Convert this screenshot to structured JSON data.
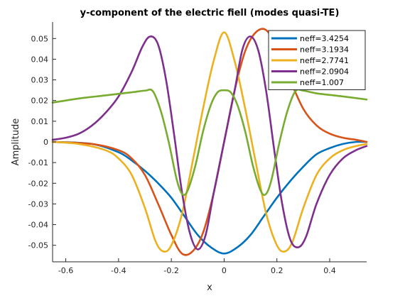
{
  "chart_data": {
    "type": "line",
    "title": "y-component of the electric fiell (modes quasi-TE)",
    "xlabel": "x",
    "ylabel": "Amplitude",
    "xlim": [
      -0.65,
      0.54
    ],
    "ylim": [
      -0.058,
      0.058
    ],
    "grid": false,
    "legend_position": "top-right",
    "xticks": [
      -0.6,
      -0.4,
      -0.2,
      0,
      0.2,
      0.4
    ],
    "xtick_labels": [
      "-0.6",
      "-0.4",
      "-0.2",
      "0",
      "0.2",
      "0.4"
    ],
    "yticks": [
      0.05,
      0.04,
      0.03,
      0.02,
      0.01,
      0,
      -0.01,
      -0.02,
      -0.03,
      -0.04,
      -0.05
    ],
    "ytick_labels": [
      "0.05",
      "0.04",
      "0.03",
      "0.02",
      "0.01",
      "0",
      "-0.01",
      "-0.02",
      "-0.03",
      "-0.04",
      "-0.05"
    ],
    "series": [
      {
        "name": "neff=3.4254",
        "color": "#0072BD",
        "points": [
          [
            -0.65,
            0
          ],
          [
            -0.5,
            -0.001
          ],
          [
            -0.4,
            -0.005
          ],
          [
            -0.35,
            -0.009
          ],
          [
            -0.3,
            -0.014
          ],
          [
            -0.25,
            -0.02
          ],
          [
            -0.2,
            -0.027
          ],
          [
            -0.15,
            -0.036
          ],
          [
            -0.1,
            -0.045
          ],
          [
            -0.05,
            -0.051
          ],
          [
            0,
            -0.054
          ],
          [
            0.05,
            -0.051
          ],
          [
            0.1,
            -0.045
          ],
          [
            0.15,
            -0.036
          ],
          [
            0.2,
            -0.027
          ],
          [
            0.25,
            -0.019
          ],
          [
            0.3,
            -0.012
          ],
          [
            0.35,
            -0.006
          ],
          [
            0.4,
            -0.003
          ],
          [
            0.45,
            -0.001
          ],
          [
            0.5,
            0
          ],
          [
            0.54,
            0
          ]
        ]
      },
      {
        "name": "neff=3.1934",
        "color": "#D95319",
        "points": [
          [
            -0.65,
            0
          ],
          [
            -0.5,
            -0.001
          ],
          [
            -0.4,
            -0.004
          ],
          [
            -0.35,
            -0.008
          ],
          [
            -0.3,
            -0.016
          ],
          [
            -0.25,
            -0.03
          ],
          [
            -0.2,
            -0.045
          ],
          [
            -0.16,
            -0.054
          ],
          [
            -0.12,
            -0.053
          ],
          [
            -0.08,
            -0.044
          ],
          [
            -0.04,
            -0.025
          ],
          [
            0,
            0
          ],
          [
            0.04,
            0.025
          ],
          [
            0.08,
            0.044
          ],
          [
            0.12,
            0.053
          ],
          [
            0.16,
            0.054
          ],
          [
            0.2,
            0.045
          ],
          [
            0.25,
            0.03
          ],
          [
            0.3,
            0.016
          ],
          [
            0.35,
            0.008
          ],
          [
            0.4,
            0.004
          ],
          [
            0.45,
            0.002
          ],
          [
            0.5,
            0.001
          ],
          [
            0.54,
            0
          ]
        ]
      },
      {
        "name": "neff=2.7741",
        "color": "#EDB120",
        "points": [
          [
            -0.65,
            0
          ],
          [
            -0.55,
            -0.001
          ],
          [
            -0.45,
            -0.004
          ],
          [
            -0.4,
            -0.008
          ],
          [
            -0.35,
            -0.016
          ],
          [
            -0.3,
            -0.032
          ],
          [
            -0.26,
            -0.048
          ],
          [
            -0.23,
            -0.053
          ],
          [
            -0.2,
            -0.05
          ],
          [
            -0.16,
            -0.035
          ],
          [
            -0.12,
            -0.01
          ],
          [
            -0.08,
            0.016
          ],
          [
            -0.04,
            0.039
          ],
          [
            0,
            0.053
          ],
          [
            0.04,
            0.039
          ],
          [
            0.08,
            0.016
          ],
          [
            0.12,
            -0.01
          ],
          [
            0.16,
            -0.035
          ],
          [
            0.2,
            -0.05
          ],
          [
            0.23,
            -0.053
          ],
          [
            0.26,
            -0.048
          ],
          [
            0.3,
            -0.032
          ],
          [
            0.35,
            -0.016
          ],
          [
            0.4,
            -0.008
          ],
          [
            0.45,
            -0.004
          ],
          [
            0.5,
            -0.002
          ],
          [
            0.54,
            -0.001
          ]
        ]
      },
      {
        "name": "neff=2.0904",
        "color": "#7E2F8E",
        "points": [
          [
            -0.65,
            0.001
          ],
          [
            -0.6,
            0.002
          ],
          [
            -0.55,
            0.004
          ],
          [
            -0.5,
            0.008
          ],
          [
            -0.45,
            0.014
          ],
          [
            -0.4,
            0.022
          ],
          [
            -0.35,
            0.034
          ],
          [
            -0.31,
            0.046
          ],
          [
            -0.28,
            0.051
          ],
          [
            -0.25,
            0.047
          ],
          [
            -0.22,
            0.03
          ],
          [
            -0.19,
            0.004
          ],
          [
            -0.16,
            -0.024
          ],
          [
            -0.13,
            -0.044
          ],
          [
            -0.1,
            -0.052
          ],
          [
            -0.07,
            -0.045
          ],
          [
            -0.04,
            -0.025
          ],
          [
            0,
            0
          ],
          [
            0.04,
            0.025
          ],
          [
            0.07,
            0.045
          ],
          [
            0.1,
            0.051
          ],
          [
            0.13,
            0.044
          ],
          [
            0.16,
            0.024
          ],
          [
            0.19,
            -0.004
          ],
          [
            0.22,
            -0.03
          ],
          [
            0.25,
            -0.047
          ],
          [
            0.28,
            -0.051
          ],
          [
            0.31,
            -0.046
          ],
          [
            0.35,
            -0.03
          ],
          [
            0.4,
            -0.016
          ],
          [
            0.45,
            -0.008
          ],
          [
            0.5,
            -0.004
          ],
          [
            0.54,
            -0.002
          ]
        ]
      },
      {
        "name": "neff=1.007",
        "color": "#77AC30",
        "points": [
          [
            -0.65,
            0.019
          ],
          [
            -0.55,
            0.021
          ],
          [
            -0.45,
            0.0225
          ],
          [
            -0.35,
            0.024
          ],
          [
            -0.3,
            0.0248
          ],
          [
            -0.27,
            0.0245
          ],
          [
            -0.24,
            0.015
          ],
          [
            -0.21,
            0.0
          ],
          [
            -0.18,
            -0.018
          ],
          [
            -0.16,
            -0.025
          ],
          [
            -0.14,
            -0.024
          ],
          [
            -0.11,
            -0.012
          ],
          [
            -0.08,
            0.005
          ],
          [
            -0.05,
            0.018
          ],
          [
            -0.025,
            0.024
          ],
          [
            0,
            0.025
          ],
          [
            0.025,
            0.024
          ],
          [
            0.05,
            0.018
          ],
          [
            0.08,
            0.005
          ],
          [
            0.11,
            -0.012
          ],
          [
            0.14,
            -0.024
          ],
          [
            0.16,
            -0.025
          ],
          [
            0.18,
            -0.018
          ],
          [
            0.21,
            0.0
          ],
          [
            0.24,
            0.015
          ],
          [
            0.27,
            0.0245
          ],
          [
            0.3,
            0.0248
          ],
          [
            0.35,
            0.0235
          ],
          [
            0.45,
            0.022
          ],
          [
            0.54,
            0.0205
          ]
        ]
      }
    ]
  }
}
